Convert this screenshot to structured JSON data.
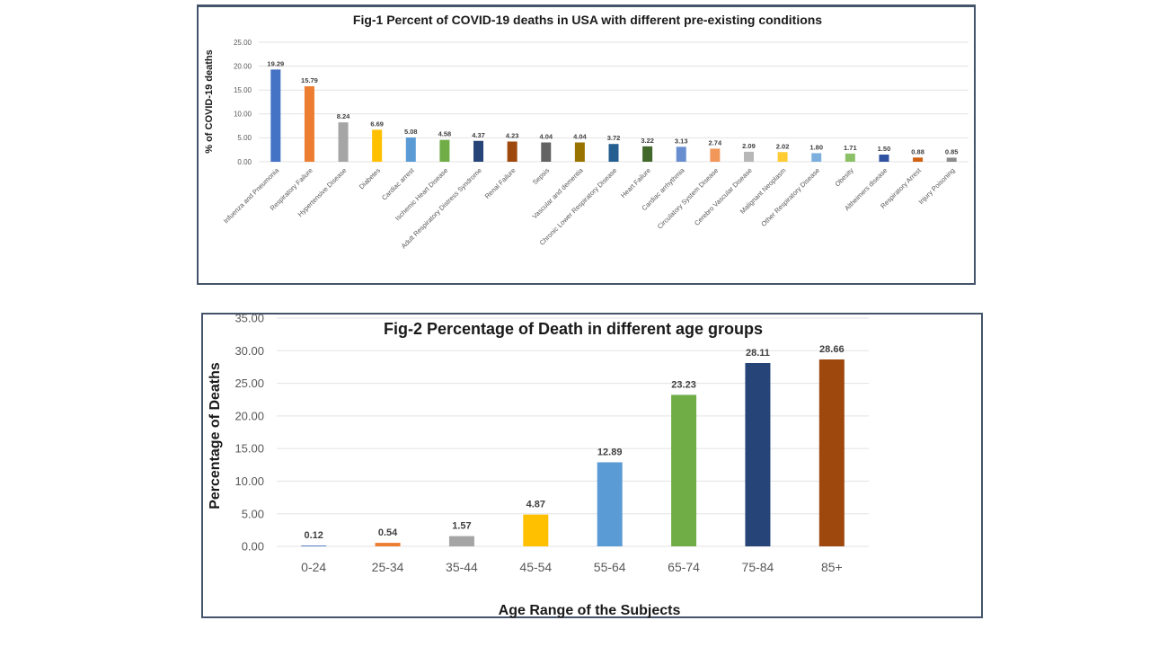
{
  "chart_data": [
    {
      "type": "bar",
      "title": "Fig-1   Percent of COVID-19 deaths in USA with different pre-existing conditions",
      "xlabel": "",
      "ylabel": "% of COVID-19 deaths",
      "ylim": [
        0,
        25
      ],
      "yticks": [
        "0.00",
        "5.00",
        "10.00",
        "15.00",
        "20.00",
        "25.00"
      ],
      "grid": true,
      "legend": "none",
      "categories": [
        "Infuenza and Pneumonia",
        "Respiratory Failure",
        "Hypertensive Disease",
        "Diabetes",
        "Cardiac arrest",
        "Ischemic Heart Disease",
        "Adult Respiratory Distress Syndrome",
        "Renal Failure",
        "Sepsis",
        "Vascular and dementia",
        "Chronic Lower Respiratory Disease",
        "Heart Failure",
        "Cardiac arrhythmia",
        "Circulatory System Disease",
        "Cerebro Vascular Disease",
        "Malignant Neoplasm",
        "Other Respiratory Disease",
        "Obesity",
        "Altheimers disease",
        "Respiratory Arrest",
        "Injury Poisoning"
      ],
      "values": [
        19.29,
        15.79,
        8.24,
        6.69,
        5.08,
        4.58,
        4.37,
        4.23,
        4.04,
        4.04,
        3.72,
        3.22,
        3.13,
        2.74,
        2.09,
        2.02,
        1.8,
        1.71,
        1.5,
        0.88,
        0.85
      ],
      "data_labels": [
        "19.29",
        "15.79",
        "8.24",
        "6.69",
        "5.08",
        "4.58",
        "4.37",
        "4.23",
        "4.04",
        "4.04",
        "3.72",
        "3.22",
        "3.13",
        "2.74",
        "2.09",
        "2.02",
        "1.80",
        "1.71",
        "1.50",
        "0.88",
        "0.85"
      ],
      "colors": [
        "#4472c4",
        "#ed7d31",
        "#a5a5a5",
        "#ffc000",
        "#5b9bd5",
        "#70ad47",
        "#264478",
        "#9e480e",
        "#636363",
        "#997300",
        "#255e91",
        "#43682b",
        "#698ed0",
        "#f1975a",
        "#b7b7b7",
        "#ffcd33",
        "#7cafdd",
        "#8cc168",
        "#2f52a0",
        "#d26012",
        "#8c8c8c"
      ]
    },
    {
      "type": "bar",
      "title": "Fig-2 Percentage of Death in different age groups",
      "xlabel": "Age Range of the Subjects",
      "ylabel": "Percentage of Deaths",
      "ylim": [
        0,
        35
      ],
      "yticks": [
        "0.00",
        "5.00",
        "10.00",
        "15.00",
        "20.00",
        "25.00",
        "30.00",
        "35.00"
      ],
      "grid": true,
      "legend": "none",
      "categories": [
        "0-24",
        "25-34",
        "35-44",
        "45-54",
        "55-64",
        "65-74",
        "75-84",
        "85+"
      ],
      "values": [
        0.12,
        0.54,
        1.57,
        4.87,
        12.89,
        23.23,
        28.11,
        28.66
      ],
      "data_labels": [
        "0.12",
        "0.54",
        "1.57",
        "4.87",
        "12.89",
        "23.23",
        "28.11",
        "28.66"
      ],
      "colors": [
        "#4472c4",
        "#ed7d31",
        "#a5a5a5",
        "#ffc000",
        "#5b9bd5",
        "#70ad47",
        "#264478",
        "#9e480e"
      ]
    }
  ]
}
